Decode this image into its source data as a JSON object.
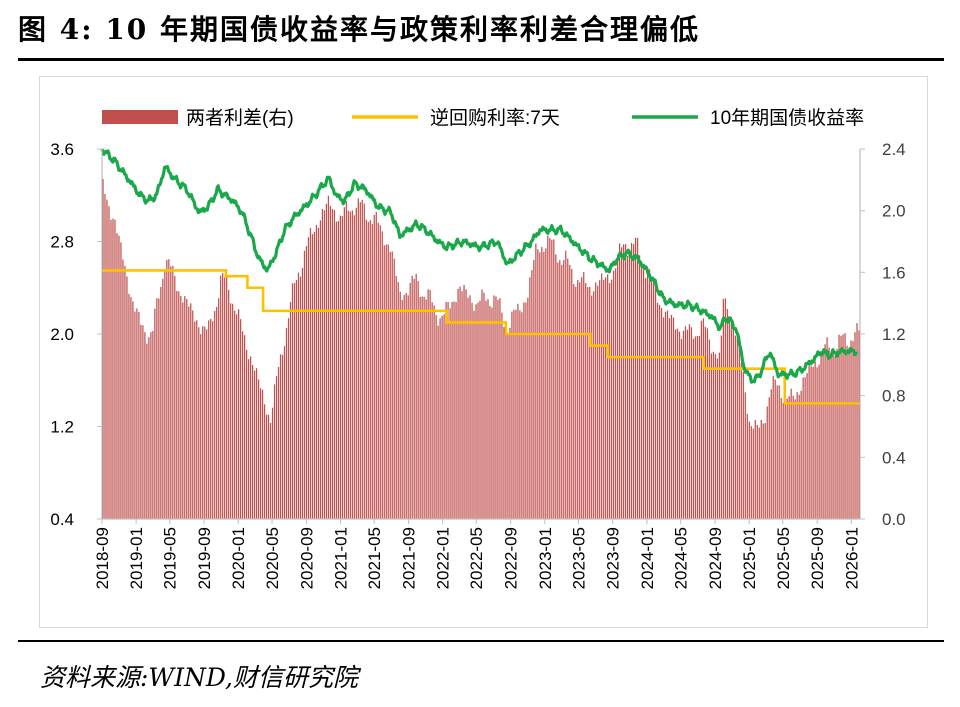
{
  "title": "图 4:  10 年期国债收益率与政策利率利差合理偏低",
  "source": "资料来源:WIND,财信研究院",
  "colors": {
    "spread": "#c0504d",
    "repo": "#ffc000",
    "yield": "#1aa84a",
    "axis": "#bfbfbf",
    "text": "#404040"
  },
  "chart_data": {
    "type": "line",
    "legend_position": "top",
    "series": [
      {
        "name": "两者利差(右)",
        "kind": "bar",
        "axis": "right",
        "knots": [
          [
            "2018-09-01",
            2.15
          ],
          [
            "2018-10-15",
            1.95
          ],
          [
            "2018-12-01",
            1.55
          ],
          [
            "2019-01-15",
            1.25
          ],
          [
            "2019-03-01",
            1.2
          ],
          [
            "2019-04-15",
            1.7
          ],
          [
            "2019-06-01",
            1.5
          ],
          [
            "2019-08-01",
            1.3
          ],
          [
            "2019-09-15",
            1.2
          ],
          [
            "2019-11-01",
            1.55
          ],
          [
            "2019-12-01",
            1.5
          ],
          [
            "2020-01-01",
            1.3
          ],
          [
            "2020-02-15",
            1.05
          ],
          [
            "2020-03-20",
            0.85
          ],
          [
            "2020-04-25",
            0.65
          ],
          [
            "2020-06-15",
            1.2
          ],
          [
            "2020-08-01",
            1.6
          ],
          [
            "2020-10-01",
            1.9
          ],
          [
            "2020-11-20",
            2.05
          ],
          [
            "2021-01-01",
            1.95
          ],
          [
            "2021-02-20",
            2.05
          ],
          [
            "2021-05-01",
            1.95
          ],
          [
            "2021-07-01",
            1.75
          ],
          [
            "2021-08-01",
            1.45
          ],
          [
            "2021-10-01",
            1.55
          ],
          [
            "2021-11-01",
            1.45
          ],
          [
            "2022-01-01",
            1.3
          ],
          [
            "2022-03-01",
            1.5
          ],
          [
            "2022-05-01",
            1.4
          ],
          [
            "2022-07-01",
            1.45
          ],
          [
            "2022-08-20",
            1.25
          ],
          [
            "2022-11-01",
            1.45
          ],
          [
            "2022-12-01",
            1.75
          ],
          [
            "2023-01-15",
            1.8
          ],
          [
            "2023-03-01",
            1.7
          ],
          [
            "2023-05-01",
            1.55
          ],
          [
            "2023-06-15",
            1.5
          ],
          [
            "2023-08-01",
            1.55
          ],
          [
            "2023-09-01",
            1.6
          ],
          [
            "2023-10-15",
            1.8
          ],
          [
            "2023-12-01",
            1.75
          ],
          [
            "2024-01-15",
            1.55
          ],
          [
            "2024-03-01",
            1.35
          ],
          [
            "2024-04-15",
            1.25
          ],
          [
            "2024-06-01",
            1.2
          ],
          [
            "2024-07-15",
            1.25
          ],
          [
            "2024-08-20",
            1.15
          ],
          [
            "2024-09-20",
            1.0
          ],
          [
            "2024-10-01",
            1.45
          ],
          [
            "2024-11-01",
            1.3
          ],
          [
            "2024-12-01",
            1.05
          ],
          [
            "2025-01-01",
            0.65
          ],
          [
            "2025-02-01",
            0.55
          ],
          [
            "2025-03-15",
            0.8
          ],
          [
            "2025-04-15",
            0.9
          ],
          [
            "2025-05-15",
            0.75
          ],
          [
            "2025-07-01",
            0.85
          ],
          [
            "2025-08-15",
            1.0
          ],
          [
            "2025-10-01",
            1.1
          ],
          [
            "2025-12-01",
            1.15
          ],
          [
            "2026-01-15",
            1.2
          ]
        ]
      },
      {
        "name": "逆回购利率:7天",
        "kind": "step",
        "axis": "left",
        "points": [
          [
            "2018-09-01",
            2.55
          ],
          [
            "2019-11-18",
            2.5
          ],
          [
            "2020-02-03",
            2.4
          ],
          [
            "2020-03-30",
            2.2
          ],
          [
            "2022-01-17",
            2.1
          ],
          [
            "2022-08-15",
            2.0
          ],
          [
            "2023-06-13",
            1.9
          ],
          [
            "2023-08-15",
            1.8
          ],
          [
            "2024-07-22",
            1.7
          ],
          [
            "2025-05-08",
            1.4
          ],
          [
            "2026-01-31",
            1.4
          ]
        ]
      },
      {
        "name": "10年期国债收益率",
        "kind": "line",
        "axis": "left",
        "knots": [
          [
            "2018-09-01",
            3.6
          ],
          [
            "2018-10-15",
            3.5
          ],
          [
            "2018-12-01",
            3.35
          ],
          [
            "2019-01-15",
            3.2
          ],
          [
            "2019-02-15",
            3.15
          ],
          [
            "2019-03-15",
            3.2
          ],
          [
            "2019-04-15",
            3.45
          ],
          [
            "2019-05-15",
            3.35
          ],
          [
            "2019-07-01",
            3.25
          ],
          [
            "2019-08-15",
            3.05
          ],
          [
            "2019-09-15",
            3.1
          ],
          [
            "2019-10-20",
            3.25
          ],
          [
            "2019-11-15",
            3.2
          ],
          [
            "2019-12-15",
            3.15
          ],
          [
            "2020-01-15",
            3.05
          ],
          [
            "2020-02-15",
            2.85
          ],
          [
            "2020-03-15",
            2.65
          ],
          [
            "2020-04-15",
            2.55
          ],
          [
            "2020-05-15",
            2.7
          ],
          [
            "2020-06-15",
            2.9
          ],
          [
            "2020-07-15",
            3.0
          ],
          [
            "2020-09-15",
            3.15
          ],
          [
            "2020-11-20",
            3.35
          ],
          [
            "2020-12-15",
            3.2
          ],
          [
            "2021-01-15",
            3.15
          ],
          [
            "2021-02-20",
            3.3
          ],
          [
            "2021-04-01",
            3.25
          ],
          [
            "2021-05-15",
            3.1
          ],
          [
            "2021-07-01",
            3.05
          ],
          [
            "2021-08-01",
            2.85
          ],
          [
            "2021-10-01",
            2.95
          ],
          [
            "2021-11-01",
            2.9
          ],
          [
            "2021-12-15",
            2.8
          ],
          [
            "2022-01-15",
            2.75
          ],
          [
            "2022-03-15",
            2.8
          ],
          [
            "2022-05-15",
            2.75
          ],
          [
            "2022-07-15",
            2.8
          ],
          [
            "2022-08-20",
            2.6
          ],
          [
            "2022-10-01",
            2.7
          ],
          [
            "2022-11-15",
            2.8
          ],
          [
            "2022-12-15",
            2.9
          ],
          [
            "2023-01-15",
            2.9
          ],
          [
            "2023-03-01",
            2.9
          ],
          [
            "2023-05-01",
            2.75
          ],
          [
            "2023-06-15",
            2.65
          ],
          [
            "2023-08-20",
            2.55
          ],
          [
            "2023-09-15",
            2.65
          ],
          [
            "2023-10-20",
            2.7
          ],
          [
            "2023-12-01",
            2.65
          ],
          [
            "2024-01-15",
            2.5
          ],
          [
            "2024-03-01",
            2.3
          ],
          [
            "2024-04-15",
            2.25
          ],
          [
            "2024-06-01",
            2.25
          ],
          [
            "2024-07-15",
            2.2
          ],
          [
            "2024-08-20",
            2.15
          ],
          [
            "2024-09-20",
            2.05
          ],
          [
            "2024-10-10",
            2.15
          ],
          [
            "2024-11-15",
            2.05
          ],
          [
            "2024-12-15",
            1.7
          ],
          [
            "2025-01-10",
            1.6
          ],
          [
            "2025-02-01",
            1.62
          ],
          [
            "2025-03-15",
            1.85
          ],
          [
            "2025-04-15",
            1.65
          ],
          [
            "2025-06-01",
            1.65
          ],
          [
            "2025-07-01",
            1.68
          ],
          [
            "2025-08-20",
            1.78
          ],
          [
            "2025-09-15",
            1.85
          ],
          [
            "2025-10-15",
            1.82
          ],
          [
            "2025-12-01",
            1.85
          ],
          [
            "2026-01-20",
            1.85
          ]
        ]
      }
    ],
    "y_left": {
      "ylim": [
        0.4,
        3.6
      ],
      "ticks": [
        "0.4",
        "1.2",
        "2.0",
        "2.8",
        "3.6"
      ]
    },
    "y_right": {
      "ylim": [
        0.0,
        2.4
      ],
      "ticks": [
        "0.0",
        "0.4",
        "0.8",
        "1.2",
        "1.6",
        "2.0",
        "2.4"
      ]
    },
    "x_range": [
      "2018-09-01",
      "2026-02-01"
    ],
    "x_ticks": [
      "2018-09",
      "2019-01",
      "2019-05",
      "2019-09",
      "2020-01",
      "2020-05",
      "2020-09",
      "2021-01",
      "2021-05",
      "2021-09",
      "2022-01",
      "2022-05",
      "2022-09",
      "2023-01",
      "2023-05",
      "2023-09",
      "2024-01",
      "2024-05",
      "2024-09",
      "2025-01",
      "2025-05",
      "2025-09",
      "2026-01"
    ]
  }
}
